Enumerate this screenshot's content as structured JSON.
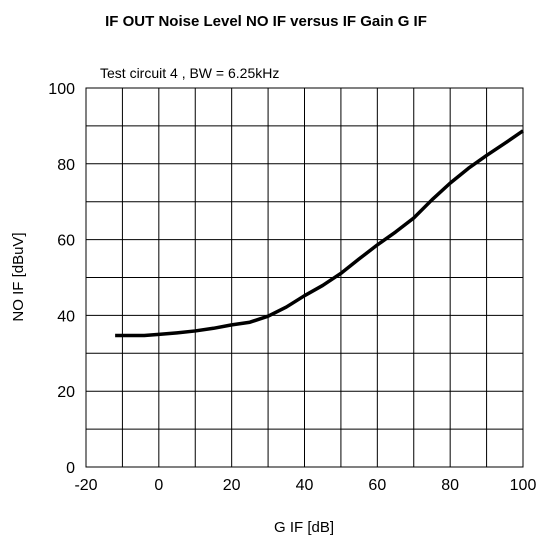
{
  "chart_data": {
    "type": "line",
    "title": "IF OUT Noise Level NO IF versus IF Gain G IF",
    "subtitle": "Test circuit 4 , BW = 6.25kHz",
    "xlabel": "G IF [dB]",
    "ylabel": "NO IF [dBuV]",
    "xlim": [
      -20,
      100
    ],
    "ylim": [
      0,
      100
    ],
    "xticks": [
      "-20",
      "0",
      "20",
      "40",
      "60",
      "80",
      "100"
    ],
    "yticks": [
      "0",
      "20",
      "40",
      "60",
      "80",
      "100"
    ],
    "x_minor_step": 10,
    "y_minor_step": 10,
    "grid": true,
    "series": [
      {
        "color": "#000000",
        "x": [
          -12,
          -8,
          -4,
          0,
          5,
          10,
          15,
          20,
          25,
          30,
          35,
          40,
          45,
          50,
          55,
          60,
          65,
          70,
          75,
          80,
          85,
          90,
          95,
          100
        ],
        "y": [
          34.7,
          34.7,
          34.7,
          35.0,
          35.4,
          35.9,
          36.6,
          37.5,
          38.2,
          39.8,
          42.2,
          45.2,
          47.9,
          51.1,
          54.9,
          58.6,
          62.0,
          65.7,
          70.5,
          74.9,
          78.8,
          82.2,
          85.4,
          88.7
        ]
      }
    ]
  }
}
